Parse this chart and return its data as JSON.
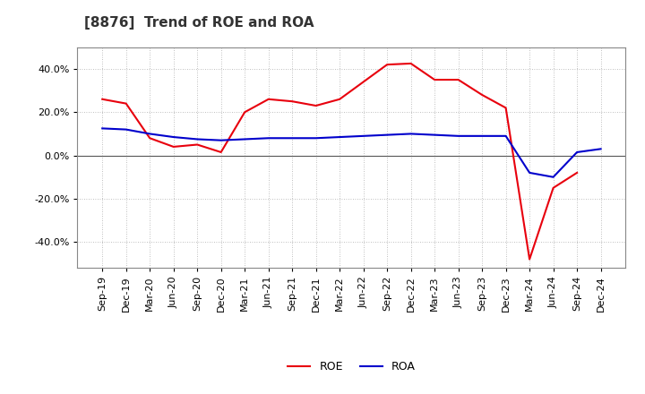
{
  "title": "[8876]  Trend of ROE and ROA",
  "x_labels": [
    "Sep-19",
    "Dec-19",
    "Mar-20",
    "Jun-20",
    "Sep-20",
    "Dec-20",
    "Mar-21",
    "Jun-21",
    "Sep-21",
    "Dec-21",
    "Mar-22",
    "Jun-22",
    "Sep-22",
    "Dec-22",
    "Mar-23",
    "Jun-23",
    "Sep-23",
    "Dec-23",
    "Mar-24",
    "Jun-24",
    "Sep-24",
    "Dec-24"
  ],
  "roe": [
    26.0,
    24.0,
    8.0,
    4.0,
    5.0,
    1.5,
    20.0,
    26.0,
    25.0,
    23.0,
    26.0,
    34.0,
    42.0,
    42.5,
    35.0,
    35.0,
    28.0,
    22.0,
    -48.0,
    -15.0,
    -8.0,
    null
  ],
  "roa": [
    12.5,
    12.0,
    10.0,
    8.5,
    7.5,
    7.0,
    7.5,
    8.0,
    8.0,
    8.0,
    8.5,
    9.0,
    9.5,
    10.0,
    9.5,
    9.0,
    9.0,
    9.0,
    -8.0,
    -10.0,
    1.5,
    3.0
  ],
  "roe_color": "#e8000d",
  "roa_color": "#0000cc",
  "bg_color": "#ffffff",
  "plot_bg_color": "#ffffff",
  "grid_color": "#aaaaaa",
  "ylim": [
    -52,
    50
  ],
  "yticks": [
    -40,
    -20,
    0,
    20,
    40
  ],
  "title_fontsize": 11,
  "axis_fontsize": 8,
  "legend_fontsize": 9
}
